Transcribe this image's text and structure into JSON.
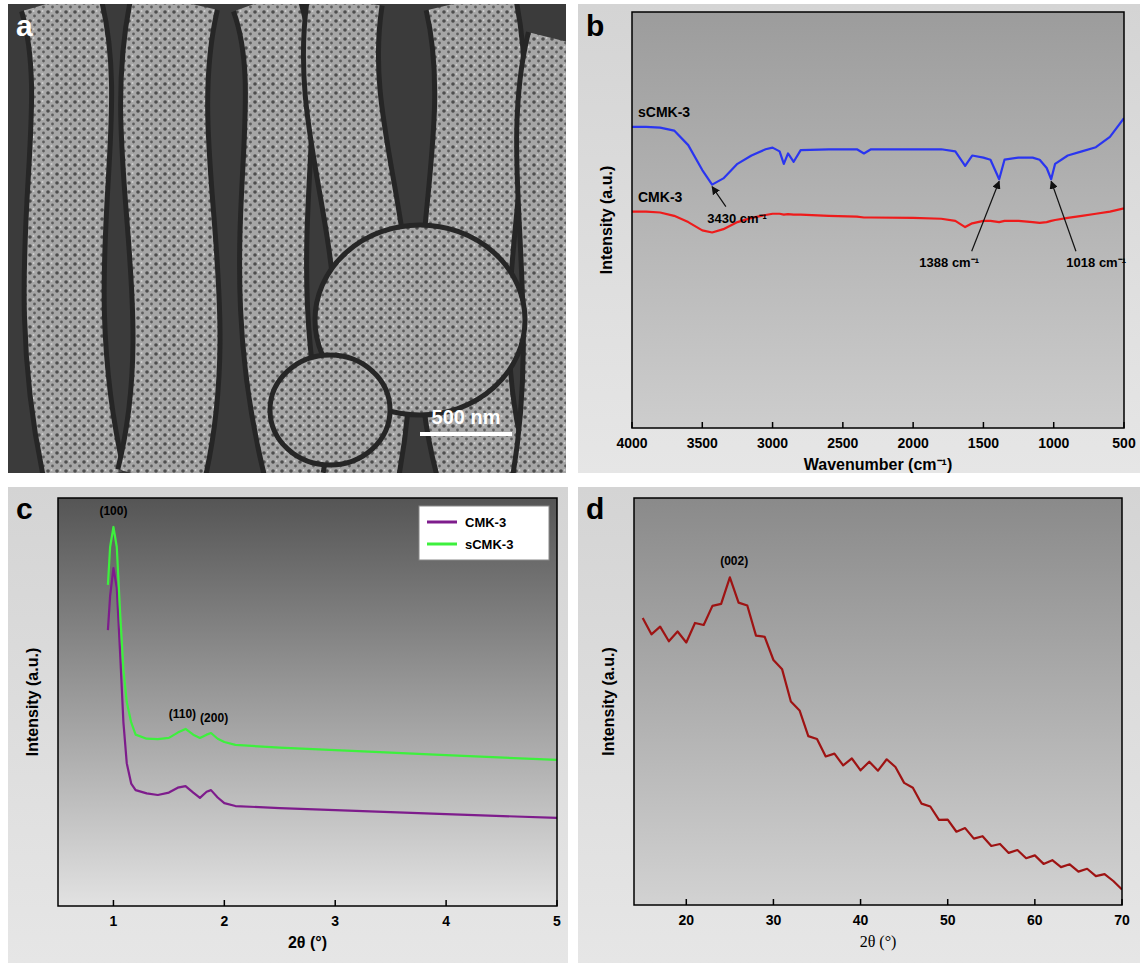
{
  "image": {
    "panel_label": "a",
    "scale_bar": "500 nm"
  },
  "chart_data": [
    {
      "type": "line",
      "panel_label": "b",
      "x_label": "Wavenumber (cm⁻¹)",
      "y_label": "Intensity (a.u.)",
      "x": [
        4000,
        3900,
        3800,
        3700,
        3600,
        3500,
        3430,
        3350,
        3250,
        3150,
        3050,
        3000,
        2950,
        2920,
        2890,
        2850,
        2800,
        2600,
        2400,
        2350,
        2300,
        2000,
        1800,
        1700,
        1630,
        1580,
        1500,
        1450,
        1388,
        1350,
        1250,
        1150,
        1100,
        1050,
        1018,
        990,
        900,
        800,
        700,
        600,
        500
      ],
      "series": [
        {
          "name": "sCMK-3",
          "color": "#2a35f0",
          "values": [
            72.4,
            72.4,
            72.2,
            71.5,
            68,
            62,
            58.5,
            60,
            63.5,
            65.5,
            67,
            67.4,
            66.5,
            63.5,
            66,
            64,
            66.8,
            67,
            67,
            66,
            67,
            67,
            67,
            66.5,
            63,
            65.5,
            65,
            64.5,
            59.8,
            64.5,
            65,
            65,
            64.5,
            62.5,
            59.8,
            63.5,
            65.5,
            66.5,
            67.5,
            70,
            74.5
          ]
        },
        {
          "name": "CMK-3",
          "color": "#ee1b1b",
          "values": [
            52,
            52,
            51.8,
            51,
            49.5,
            47.5,
            47,
            47.8,
            49.5,
            50.5,
            51.2,
            51.5,
            51.5,
            51.3,
            51.4,
            51.3,
            51.3,
            51,
            50.8,
            50.6,
            50.6,
            50.5,
            50.3,
            49.8,
            48.3,
            49.2,
            49.8,
            49.8,
            49.5,
            49.8,
            49.8,
            49.5,
            49.3,
            49.5,
            49.8,
            50,
            50.5,
            51,
            51.5,
            52,
            52.8
          ]
        }
      ],
      "xlim": [
        4000,
        500
      ],
      "xticks": [
        4000,
        3500,
        3000,
        2500,
        2000,
        1500,
        1000,
        500
      ],
      "ylim": [
        0,
        100
      ],
      "yticks": [],
      "tick_labels": "x",
      "grid": false,
      "annotations": [
        {
          "text": "3430 cm⁻¹",
          "x": 3430,
          "y": 58.5
        },
        {
          "text": "1388 cm⁻¹",
          "x": 1388,
          "y": 59.8
        },
        {
          "text": "1018 cm⁻¹",
          "x": 1018,
          "y": 59.8
        }
      ]
    },
    {
      "type": "line",
      "panel_label": "c",
      "x_label": "2θ (°)",
      "y_label": "Intensity (a.u.)",
      "x": [
        0.95,
        0.97,
        1.0,
        1.03,
        1.06,
        1.09,
        1.12,
        1.16,
        1.2,
        1.3,
        1.4,
        1.5,
        1.58,
        1.65,
        1.72,
        1.78,
        1.84,
        1.88,
        1.94,
        2.0,
        2.1,
        2.5,
        3,
        4,
        5
      ],
      "series": [
        {
          "name": "CMK-3",
          "color": "#7e1c8c",
          "values": [
            67.6,
            76,
            82.8,
            78,
            62,
            45,
            35,
            30,
            28.4,
            27.6,
            27.2,
            27.8,
            29,
            29.4,
            27.8,
            26.5,
            28,
            28.4,
            26.6,
            25.2,
            24.5,
            24,
            23.5,
            22.5,
            21.6
          ]
        },
        {
          "name": "sCMK-3",
          "color": "#3df03d",
          "values": [
            78.7,
            88,
            92.9,
            88,
            72,
            58,
            50,
            45,
            42,
            41,
            40.9,
            41.2,
            42.5,
            43.4,
            42,
            41.2,
            42,
            42.4,
            41,
            40.2,
            39.5,
            38.8,
            38.2,
            37,
            35.8
          ]
        }
      ],
      "xlim": [
        0.5,
        5
      ],
      "xticks": [
        1,
        2,
        3,
        4,
        5
      ],
      "ylim": [
        0,
        100
      ],
      "yticks": [],
      "tick_labels": "x",
      "grid": false,
      "legend": "upper right",
      "annotations": [
        {
          "text": "(100)",
          "x": 1.0,
          "y": 95.8
        },
        {
          "text": "(110)",
          "x": 1.65,
          "y": 46.1
        },
        {
          "text": "(200)",
          "x": 1.88,
          "y": 45.1
        }
      ]
    },
    {
      "type": "line",
      "panel_label": "d",
      "x_label": "2θ (°)",
      "y_label": "Intensity (a.u.)",
      "x": [
        15,
        16,
        17,
        18,
        19,
        20,
        21,
        22,
        23,
        24,
        25,
        26,
        27,
        28,
        29,
        30,
        31,
        32,
        33,
        34,
        35,
        36,
        37,
        38,
        39,
        40,
        41,
        42,
        43,
        44,
        45,
        46,
        47,
        48,
        49,
        50,
        51,
        52,
        53,
        54,
        55,
        56,
        57,
        58,
        59,
        60,
        61,
        62,
        63,
        64,
        65,
        66,
        67,
        68,
        69,
        70
      ],
      "series": [
        {
          "color": "#9e1313",
          "values": [
            70.5,
            66.5,
            68.4,
            64.8,
            67.2,
            64.5,
            69.3,
            68.8,
            73.5,
            74,
            80.5,
            74.3,
            73.6,
            66.2,
            65.9,
            60.2,
            57.9,
            50,
            47.8,
            41.5,
            40.8,
            36.5,
            37.2,
            34.3,
            36,
            33.1,
            35.2,
            33,
            35.8,
            33.9,
            30,
            28.8,
            24.9,
            24.2,
            20.9,
            21,
            18,
            18.9,
            16.3,
            16.9,
            14.5,
            15,
            12.8,
            13.5,
            11.5,
            12.2,
            10.1,
            11,
            9.3,
            10,
            8.2,
            8.9,
            7.1,
            7.6,
            5.9,
            3.8
          ]
        }
      ],
      "xlim": [
        14,
        70
      ],
      "xticks": [
        20,
        30,
        40,
        50,
        60,
        70
      ],
      "ylim": [
        0,
        100
      ],
      "yticks": [],
      "tick_labels": "x",
      "grid": false,
      "annotations": [
        {
          "text": "(002)",
          "x": 25.5,
          "y": 83.5
        }
      ]
    }
  ]
}
